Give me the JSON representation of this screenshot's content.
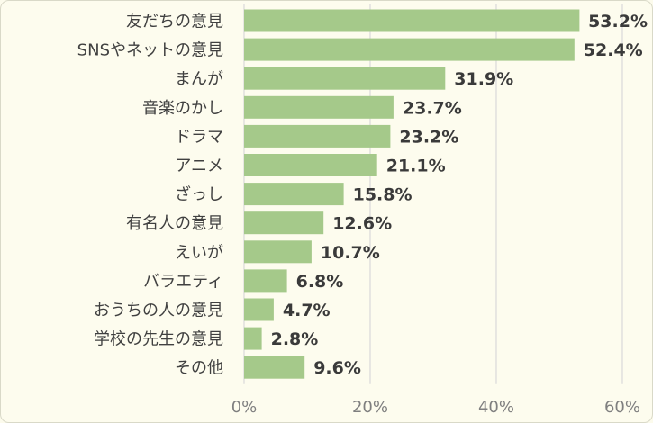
{
  "chart_data": {
    "type": "bar",
    "orientation": "horizontal",
    "title": "",
    "xlabel": "",
    "ylabel": "",
    "categories": [
      "友だちの意見",
      "SNSやネットの意見",
      "まんが",
      "音楽のかし",
      "ドラマ",
      "アニメ",
      "ざっし",
      "有名人の意見",
      "えいが",
      "バラエティ",
      "おうちの人の意見",
      "学校の先生の意見",
      "その他"
    ],
    "values": [
      53.2,
      52.4,
      31.9,
      23.7,
      23.2,
      21.1,
      15.8,
      12.6,
      10.7,
      6.8,
      4.7,
      2.8,
      9.6
    ],
    "value_labels": [
      "53.2%",
      "52.4%",
      "31.9%",
      "23.7%",
      "23.2%",
      "21.1%",
      "15.8%",
      "12.6%",
      "10.7%",
      "6.8%",
      "4.7%",
      "2.8%",
      "9.6%"
    ],
    "xlim": [
      0,
      60
    ],
    "x_ticks": [
      0,
      20,
      40,
      60
    ],
    "x_tick_labels": [
      "0%",
      "20%",
      "40%",
      "60%"
    ],
    "grid": true,
    "legend": "none",
    "colors": {
      "bar": "#a5c98a",
      "grid": "#d9d9d9",
      "background": "#fdfcee",
      "label_text": "#404040",
      "value_text": "#3a3a3a",
      "tick_text": "#7f7f7f"
    }
  }
}
